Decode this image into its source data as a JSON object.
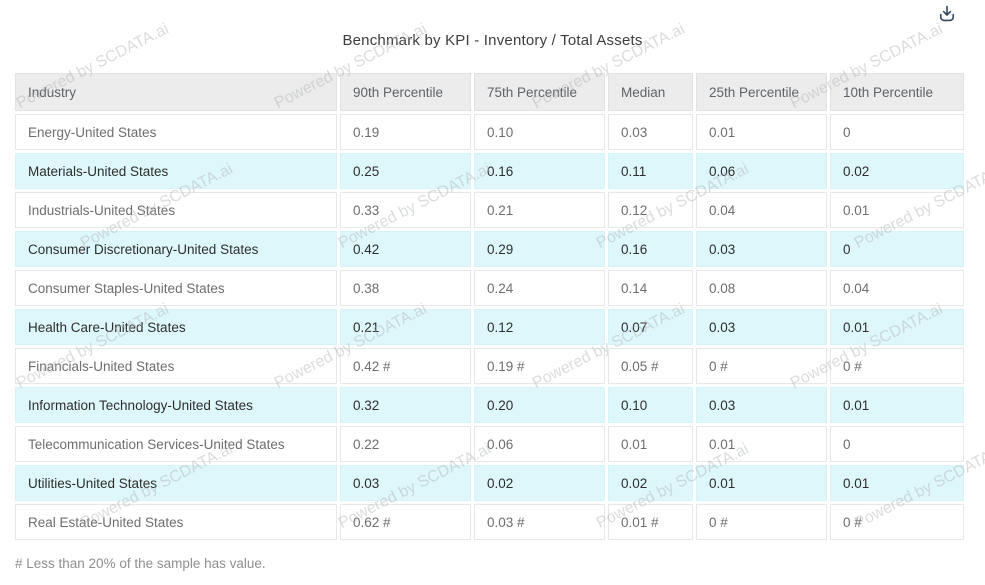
{
  "title": "Benchmark by KPI - Inventory / Total Assets",
  "toolbar": {
    "download_icon": "download-icon"
  },
  "watermark": {
    "text": "Powered by SCDATA.ai"
  },
  "table": {
    "columns": [
      "Industry",
      "90th Percentile",
      "75th Percentile",
      "Median",
      "25th Percentile",
      "10th Percentile"
    ],
    "rows": [
      {
        "industry": "Energy-United States",
        "values": [
          "0.19",
          "0.10",
          "0.03",
          "0.01",
          "0"
        ]
      },
      {
        "industry": "Materials-United States",
        "values": [
          "0.25",
          "0.16",
          "0.11",
          "0.06",
          "0.02"
        ]
      },
      {
        "industry": "Industrials-United States",
        "values": [
          "0.33",
          "0.21",
          "0.12",
          "0.04",
          "0.01"
        ]
      },
      {
        "industry": "Consumer Discretionary-United States",
        "values": [
          "0.42",
          "0.29",
          "0.16",
          "0.03",
          "0"
        ]
      },
      {
        "industry": "Consumer Staples-United States",
        "values": [
          "0.38",
          "0.24",
          "0.14",
          "0.08",
          "0.04"
        ]
      },
      {
        "industry": "Health Care-United States",
        "values": [
          "0.21",
          "0.12",
          "0.07",
          "0.03",
          "0.01"
        ]
      },
      {
        "industry": "Financials-United States",
        "values": [
          "0.42 #",
          "0.19 #",
          "0.05 #",
          "0 #",
          "0 #"
        ]
      },
      {
        "industry": "Information Technology-United States",
        "values": [
          "0.32",
          "0.20",
          "0.10",
          "0.03",
          "0.01"
        ]
      },
      {
        "industry": "Telecommunication Services-United States",
        "values": [
          "0.22",
          "0.06",
          "0.01",
          "0.01",
          "0"
        ]
      },
      {
        "industry": "Utilities-United States",
        "values": [
          "0.03",
          "0.02",
          "0.02",
          "0.01",
          "0.01"
        ]
      },
      {
        "industry": "Real Estate-United States",
        "values": [
          "0.62 #",
          "0.03 #",
          "0.01 #",
          "0 #",
          "0 #"
        ]
      }
    ]
  },
  "footnote": "# Less than 20% of the sample has value.",
  "colors": {
    "highlight_row": "#def7fa",
    "header_bg": "#ececec",
    "icon": "#33475f"
  }
}
